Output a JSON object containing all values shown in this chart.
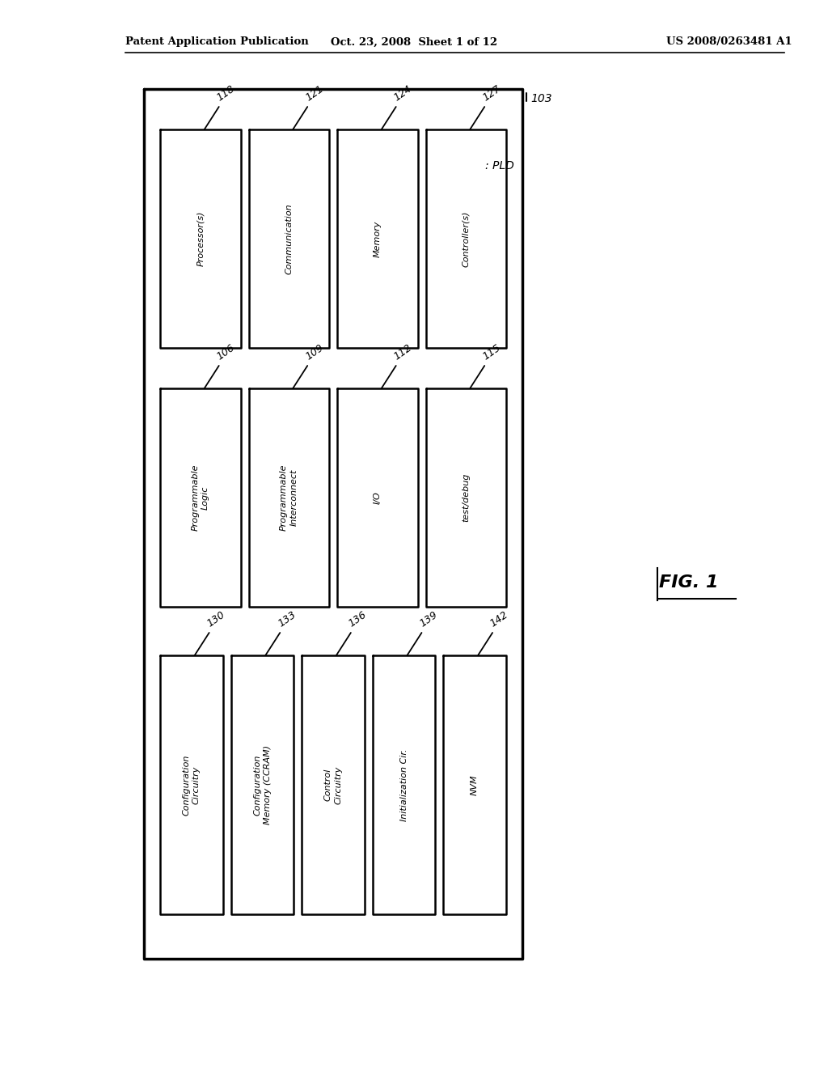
{
  "header_left": "Patent Application Publication",
  "header_center": "Oct. 23, 2008  Sheet 1 of 12",
  "header_right": "US 2008/0263481 A1",
  "figure_label": "FIG. 1",
  "outer_box_label": "103",
  "outer_box_pld": ": PLD",
  "background_color": "#ffffff",
  "rows": [
    {
      "blocks": [
        {
          "id": "118",
          "label": "Processor(s)"
        },
        {
          "id": "121",
          "label": "Communication"
        },
        {
          "id": "124",
          "label": "Memory"
        },
        {
          "id": "127",
          "label": "Controller(s)"
        }
      ]
    },
    {
      "blocks": [
        {
          "id": "106",
          "label": "Programmable\nLogic"
        },
        {
          "id": "109",
          "label": "Programmable\nInterconnect"
        },
        {
          "id": "112",
          "label": "I/O"
        },
        {
          "id": "115",
          "label": "test/debug"
        }
      ]
    },
    {
      "blocks": [
        {
          "id": "130",
          "label": "Configuration\nCircuitry"
        },
        {
          "id": "133",
          "label": "Configuration\nMemory (CCRAM)"
        },
        {
          "id": "136",
          "label": "Control\nCircuitry"
        },
        {
          "id": "139",
          "label": "Initialization Cir."
        },
        {
          "id": "142",
          "label": "NVM"
        }
      ]
    }
  ]
}
